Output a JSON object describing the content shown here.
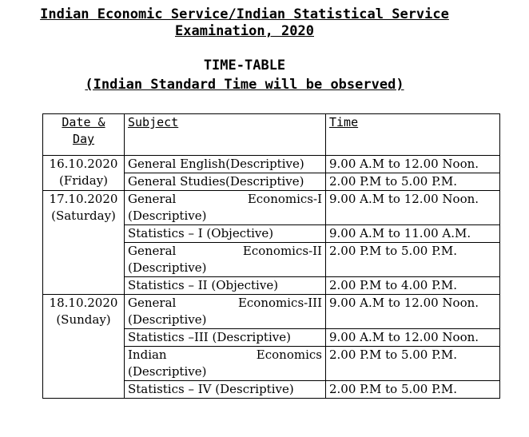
{
  "title_line1": "Indian Economic Service/Indian Statistical Service",
  "title_line2": "Examination, 2020",
  "heading": "TIME-TABLE",
  "subheading": "(Indian Standard Time will be observed)",
  "headers": {
    "date": "Date & Day",
    "date_1": "Date &",
    "date_2": "Day",
    "subject": "Subject",
    "time": "Time"
  },
  "days": [
    {
      "date": "16.10.2020",
      "day": "(Friday)"
    },
    {
      "date": "17.10.2020",
      "day": "(Saturday)"
    },
    {
      "date": "18.10.2020",
      "day": "(Sunday)"
    }
  ],
  "rows": [
    {
      "subject": "General English(Descriptive)",
      "time": "9.00 A.M to 12.00 Noon."
    },
    {
      "subject": "General Studies(Descriptive)",
      "time": "2.00 P.M to 5.00 P.M."
    },
    {
      "subject_a": "General",
      "subject_b": "Economics-I",
      "subject_c": "(Descriptive)",
      "time": "9.00 A.M to 12.00 Noon."
    },
    {
      "subject": "Statistics – I (Objective)",
      "time": "9.00 A.M to 11.00 A.M."
    },
    {
      "subject_a": "General",
      "subject_b": "Economics-II",
      "subject_c": "(Descriptive)",
      "time": "2.00 P.M to 5.00 P.M."
    },
    {
      "subject": "Statistics – II (Objective)",
      "time": "2.00 P.M to 4.00 P.M."
    },
    {
      "subject_a": "General",
      "subject_b": "Economics-III",
      "subject_c": "(Descriptive)",
      "time": "9.00 A.M to 12.00 Noon."
    },
    {
      "subject": "Statistics –III (Descriptive)",
      "time": "9.00 A.M to 12.00 Noon."
    },
    {
      "subject_a": "Indian",
      "subject_b": "Economics",
      "subject_c": "(Descriptive)",
      "time": "2.00 P.M to 5.00 P.M."
    },
    {
      "subject": "Statistics – IV (Descriptive)",
      "time": "2.00 P.M to 5.00 P.M."
    }
  ]
}
